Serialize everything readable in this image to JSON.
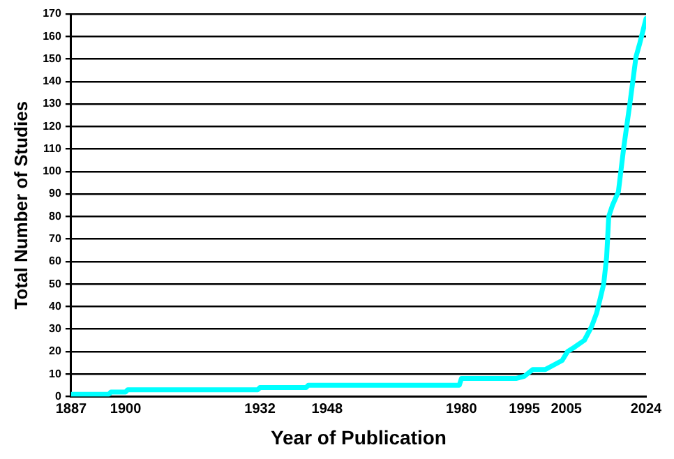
{
  "chart_data": {
    "type": "line",
    "xlabel": "Year of Publication",
    "ylabel": "Total Number of Studies",
    "series": [
      {
        "color": "#00ffff",
        "x": [
          1887,
          1896,
          1896.5,
          1900,
          1900.5,
          1931.5,
          1932,
          1943,
          1943.5,
          1979.5,
          1980,
          1993,
          1995,
          1997,
          2000,
          2002,
          2004,
          2005.3,
          2007,
          2009.3,
          2011,
          2012.2,
          2013,
          2013.9,
          2014.6,
          2015.1,
          2016,
          2017.4,
          2018.7,
          2020.2,
          2021.6,
          2022.5,
          2024
        ],
        "values": [
          1,
          1,
          2,
          2,
          3,
          3,
          4,
          4,
          5,
          5,
          8,
          8,
          9,
          12,
          12,
          14,
          16,
          20,
          22,
          25,
          31,
          37,
          43,
          50,
          62,
          80,
          85,
          91,
          111,
          131,
          151,
          157,
          168
        ]
      }
    ],
    "xlim": [
      1887,
      2024
    ],
    "xticks": [
      1887,
      1900,
      1932,
      1948,
      1980,
      1995,
      2005,
      2024
    ],
    "ylim": [
      0,
      170
    ],
    "yticks": [
      0,
      10,
      20,
      30,
      40,
      50,
      60,
      70,
      80,
      90,
      100,
      110,
      120,
      130,
      140,
      150,
      160,
      170
    ],
    "grid": "y",
    "legend": false,
    "marker": "none",
    "line_style": "solid"
  }
}
